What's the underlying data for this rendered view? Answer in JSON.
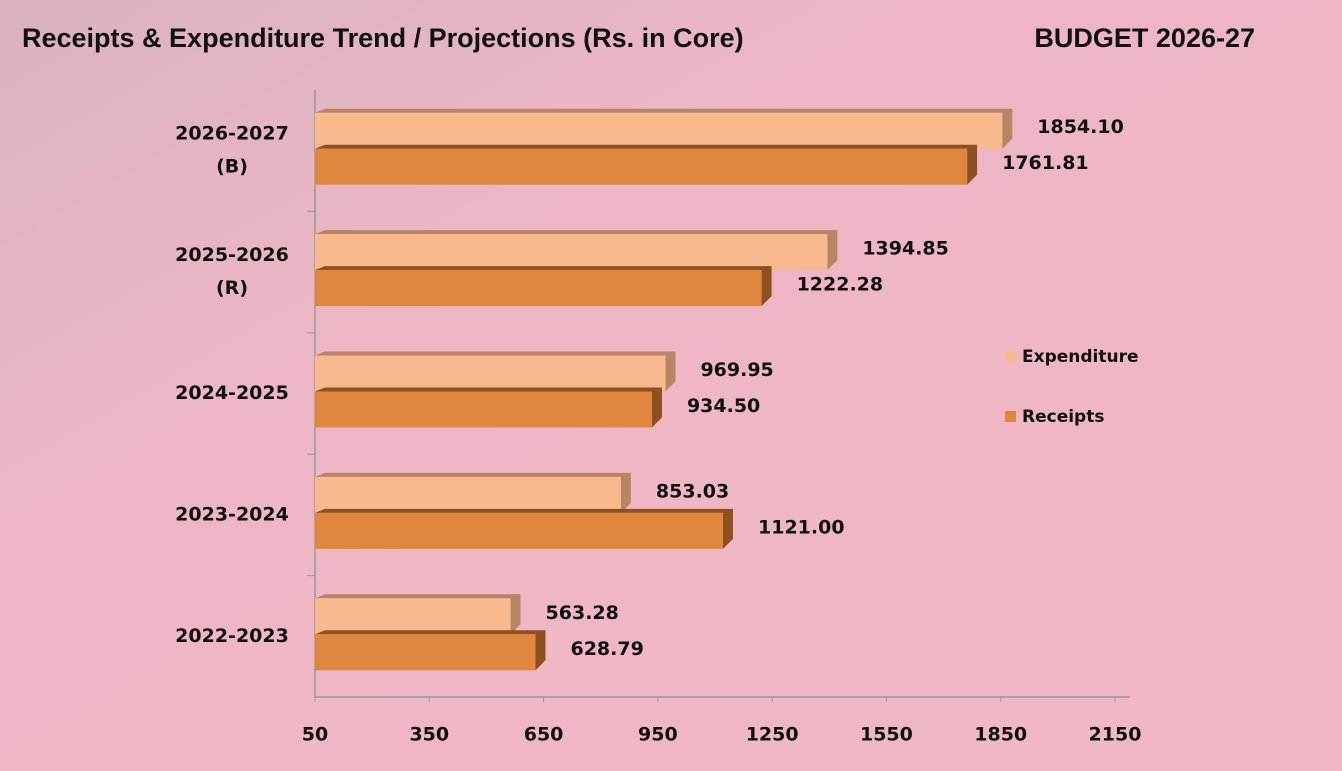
{
  "chart_data": {
    "type": "hbar",
    "title": "Receipts & Expenditure Trend / Projections (Rs. in Core)",
    "subtitle": "BUDGET 2026-27",
    "categories": [
      [
        "2026-2027",
        "(B)"
      ],
      [
        "2025-2026",
        "(R)"
      ],
      [
        "2024-2025"
      ],
      [
        "2023-2024"
      ],
      [
        "2022-2023"
      ]
    ],
    "series": [
      {
        "name": "Expenditure",
        "color": "#f9b98f",
        "side": "#b88466",
        "values": [
          1854.1,
          1394.85,
          969.95,
          853.03,
          563.28
        ],
        "value_labels": [
          "1854.10",
          "1394.85",
          "969.95",
          "853.03",
          "563.28"
        ]
      },
      {
        "name": "Receipts",
        "color": "#e0873f",
        "side": "#8e5020",
        "values": [
          1761.81,
          1222.28,
          934.5,
          1121,
          628.79
        ],
        "value_labels": [
          "1761.81",
          "1222.28",
          "934.50",
          "1121.00",
          "628.79"
        ]
      }
    ],
    "xlim": [
      50,
      2150
    ],
    "xticks": [
      50,
      350,
      650,
      950,
      1250,
      1550,
      1850,
      2150
    ],
    "legend": "right"
  }
}
